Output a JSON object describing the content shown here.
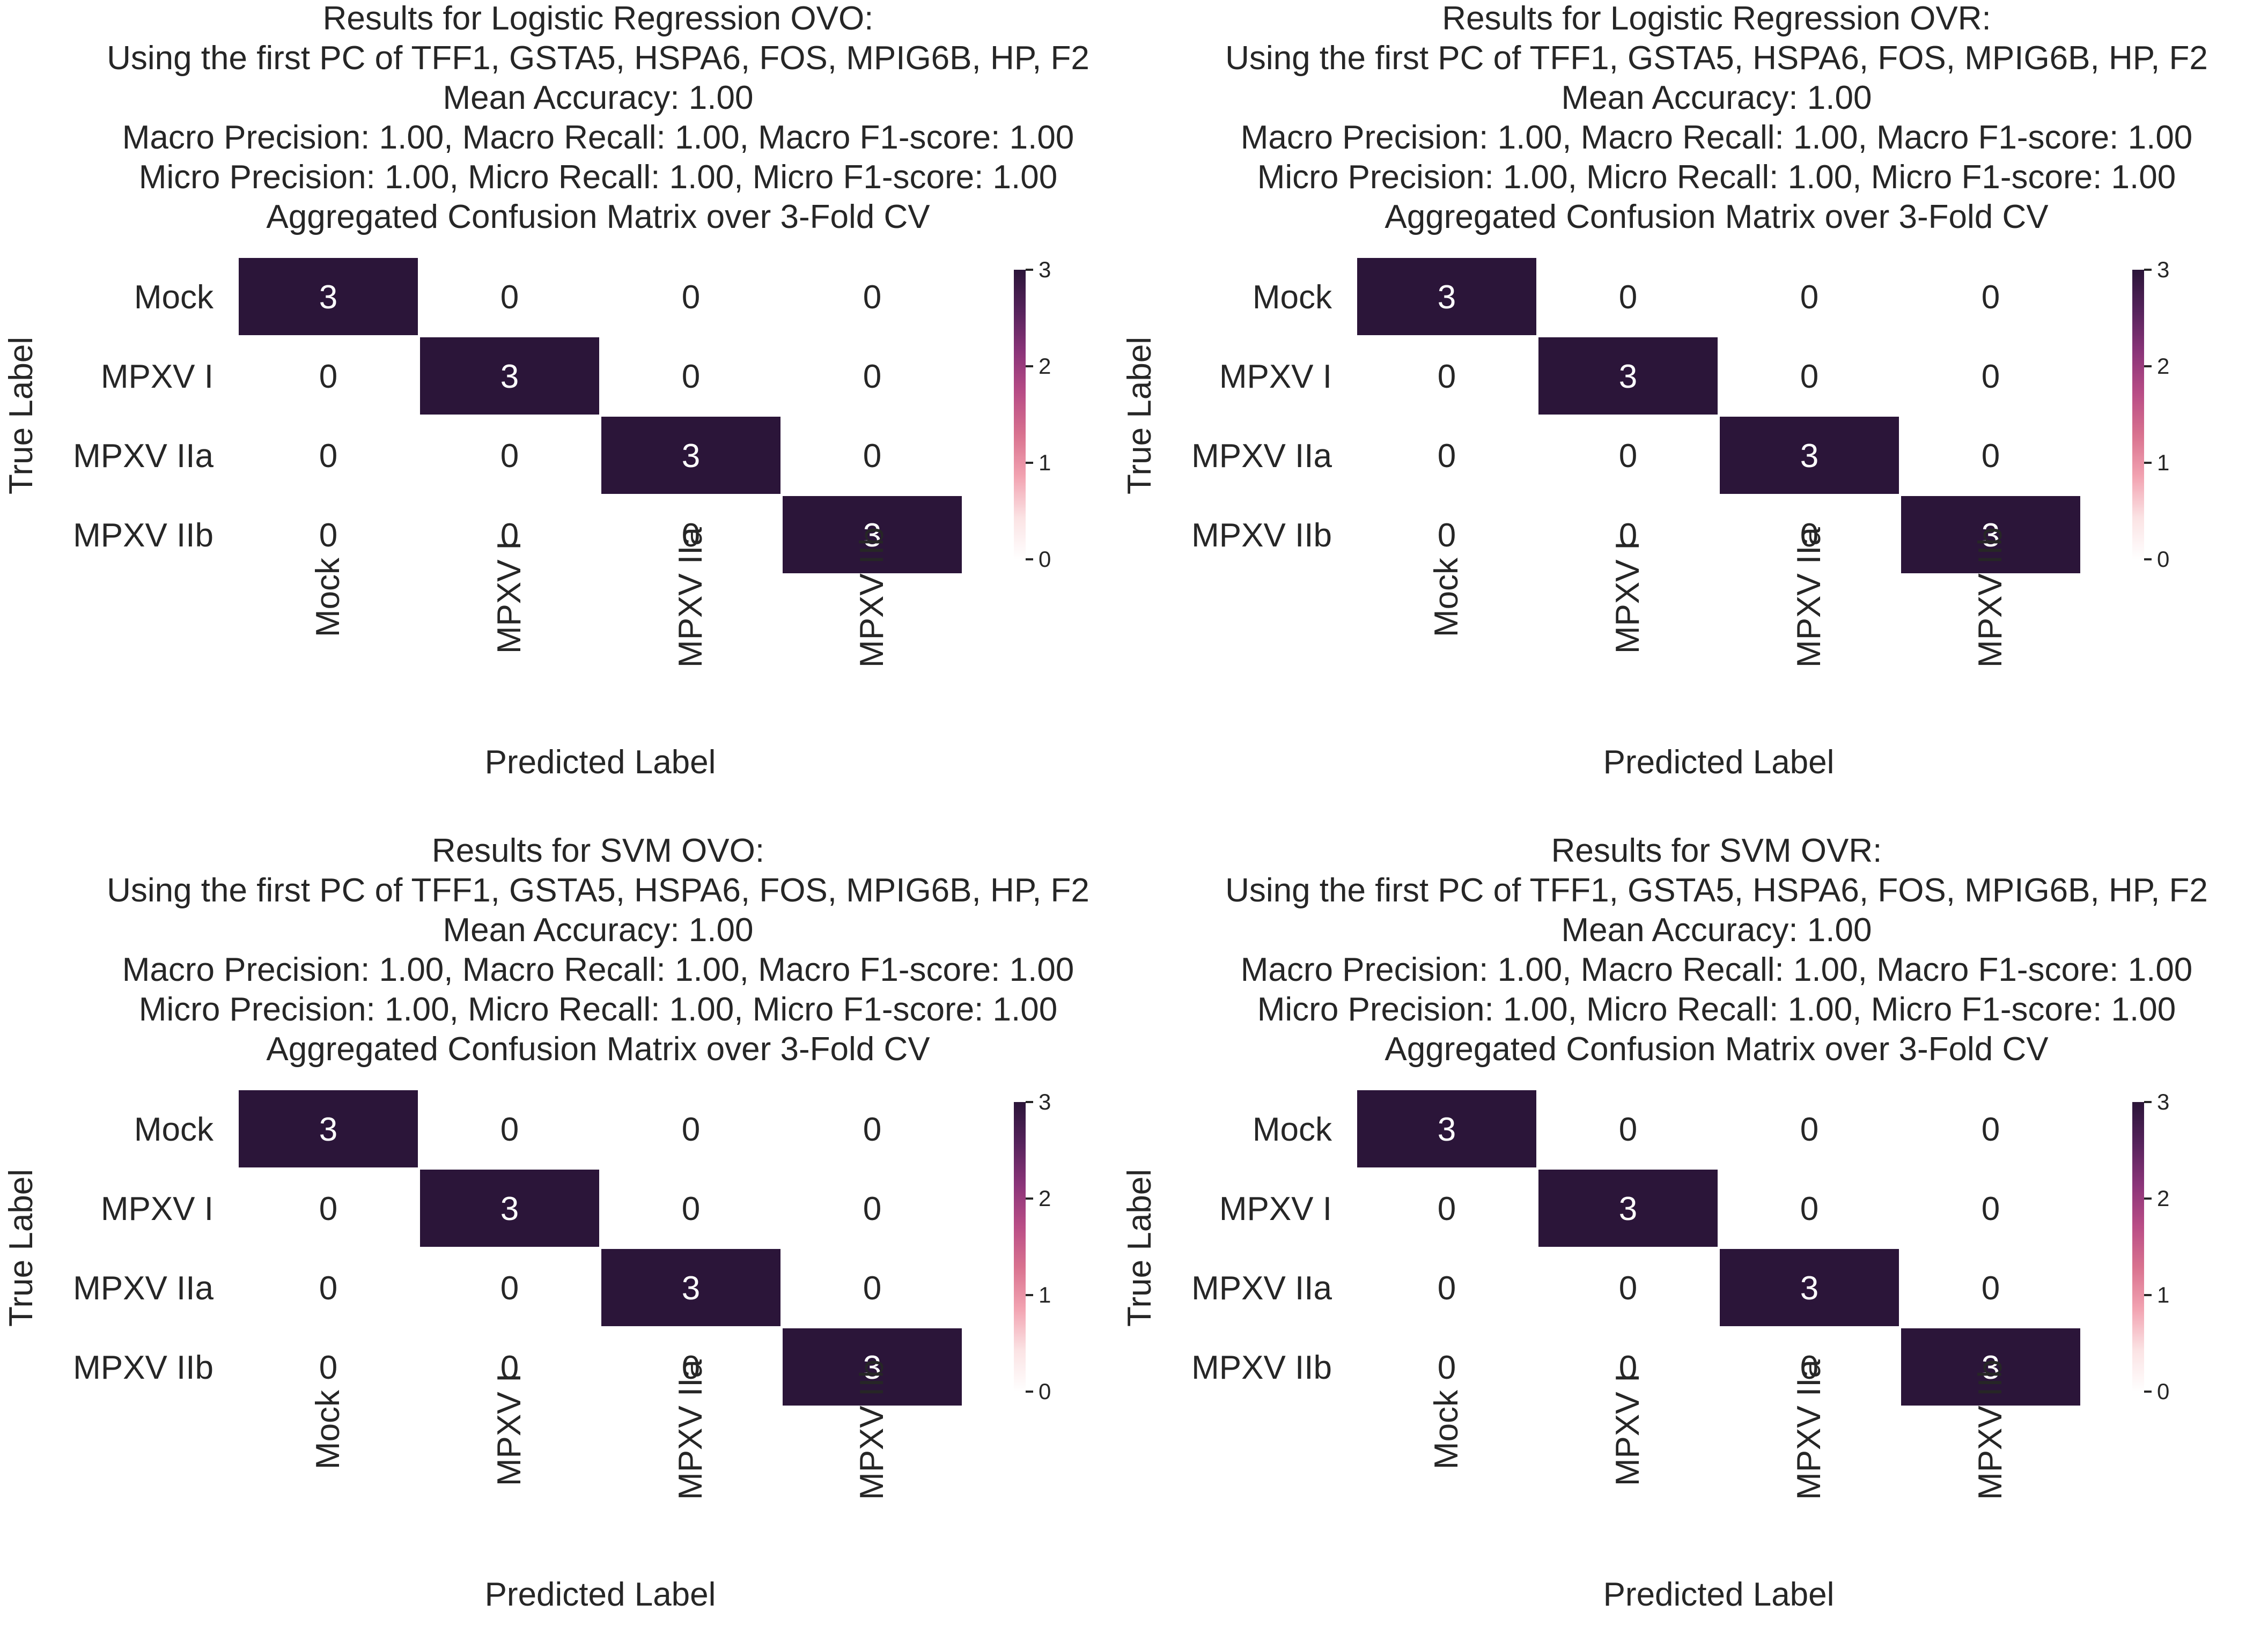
{
  "chart_data": [
    {
      "type": "heatmap",
      "title_lines": [
        "Results for Logistic Regression OVO:",
        "Using the first PC of TFF1, GSTA5, HSPA6, FOS, MPIG6B, HP, F2",
        "Mean Accuracy: 1.00",
        "Macro Precision: 1.00, Macro Recall: 1.00, Macro F1-score: 1.00",
        "Micro Precision: 1.00, Micro Recall: 1.00, Micro F1-score: 1.00",
        "Aggregated Confusion Matrix over 3-Fold CV"
      ],
      "rows": [
        "Mock",
        "MPXV I",
        "MPXV IIa",
        "MPXV IIb"
      ],
      "cols": [
        "Mock",
        "MPXV I",
        "MPXV IIa",
        "MPXV IIb"
      ],
      "values": [
        [
          3,
          0,
          0,
          0
        ],
        [
          0,
          3,
          0,
          0
        ],
        [
          0,
          0,
          3,
          0
        ],
        [
          0,
          0,
          0,
          3
        ]
      ],
      "xlabel": "Predicted Label",
      "ylabel": "True Label",
      "colorbar": {
        "vmin": 0,
        "vmax": 3,
        "ticks": [
          "0",
          "1",
          "2",
          "3"
        ]
      }
    },
    {
      "type": "heatmap",
      "title_lines": [
        "Results for Logistic Regression OVR:",
        "Using the first PC of TFF1, GSTA5, HSPA6, FOS, MPIG6B, HP, F2",
        "Mean Accuracy: 1.00",
        "Macro Precision: 1.00, Macro Recall: 1.00, Macro F1-score: 1.00",
        "Micro Precision: 1.00, Micro Recall: 1.00, Micro F1-score: 1.00",
        "Aggregated Confusion Matrix over 3-Fold CV"
      ],
      "rows": [
        "Mock",
        "MPXV I",
        "MPXV IIa",
        "MPXV IIb"
      ],
      "cols": [
        "Mock",
        "MPXV I",
        "MPXV IIa",
        "MPXV IIb"
      ],
      "values": [
        [
          3,
          0,
          0,
          0
        ],
        [
          0,
          3,
          0,
          0
        ],
        [
          0,
          0,
          3,
          0
        ],
        [
          0,
          0,
          0,
          3
        ]
      ],
      "xlabel": "Predicted Label",
      "ylabel": "True Label",
      "colorbar": {
        "vmin": 0,
        "vmax": 3,
        "ticks": [
          "0",
          "1",
          "2",
          "3"
        ]
      }
    },
    {
      "type": "heatmap",
      "title_lines": [
        "Results for SVM OVO:",
        "Using the first PC of TFF1, GSTA5, HSPA6, FOS, MPIG6B, HP, F2",
        "Mean Accuracy: 1.00",
        "Macro Precision: 1.00, Macro Recall: 1.00, Macro F1-score: 1.00",
        "Micro Precision: 1.00, Micro Recall: 1.00, Micro F1-score: 1.00",
        "Aggregated Confusion Matrix over 3-Fold CV"
      ],
      "rows": [
        "Mock",
        "MPXV I",
        "MPXV IIa",
        "MPXV IIb"
      ],
      "cols": [
        "Mock",
        "MPXV I",
        "MPXV IIa",
        "MPXV IIb"
      ],
      "values": [
        [
          3,
          0,
          0,
          0
        ],
        [
          0,
          3,
          0,
          0
        ],
        [
          0,
          0,
          3,
          0
        ],
        [
          0,
          0,
          0,
          3
        ]
      ],
      "xlabel": "Predicted Label",
      "ylabel": "True Label",
      "colorbar": {
        "vmin": 0,
        "vmax": 3,
        "ticks": [
          "0",
          "1",
          "2",
          "3"
        ]
      }
    },
    {
      "type": "heatmap",
      "title_lines": [
        "Results for SVM OVR:",
        "Using the first PC of TFF1, GSTA5, HSPA6, FOS, MPIG6B, HP, F2",
        "Mean Accuracy: 1.00",
        "Macro Precision: 1.00, Macro Recall: 1.00, Macro F1-score: 1.00",
        "Micro Precision: 1.00, Micro Recall: 1.00, Micro F1-score: 1.00",
        "Aggregated Confusion Matrix over 3-Fold CV"
      ],
      "rows": [
        "Mock",
        "MPXV I",
        "MPXV IIa",
        "MPXV IIb"
      ],
      "cols": [
        "Mock",
        "MPXV I",
        "MPXV IIa",
        "MPXV IIb"
      ],
      "values": [
        [
          3,
          0,
          0,
          0
        ],
        [
          0,
          3,
          0,
          0
        ],
        [
          0,
          0,
          3,
          0
        ],
        [
          0,
          0,
          0,
          3
        ]
      ],
      "xlabel": "Predicted Label",
      "ylabel": "True Label",
      "colorbar": {
        "vmin": 0,
        "vmax": 3,
        "ticks": [
          "0",
          "1",
          "2",
          "3"
        ]
      }
    }
  ],
  "colors": {
    "colormap": [
      "#ffffff",
      "#fbe3e4",
      "#f2a3b1",
      "#d9728f",
      "#b94d86",
      "#8b3479",
      "#56235c",
      "#2b1539"
    ],
    "dark_text": "#262626",
    "light_text": "#ffffff",
    "tick": "#262626"
  }
}
